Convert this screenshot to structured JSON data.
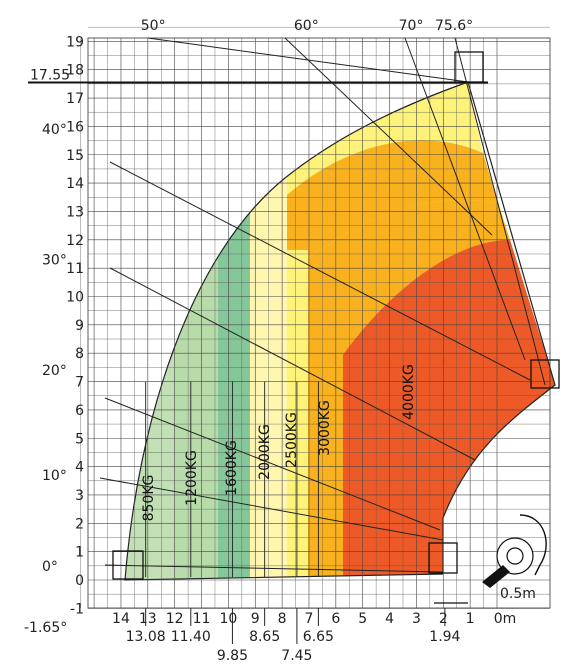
{
  "chart_data": {
    "type": "area",
    "title": "",
    "xlabel": "",
    "ylabel": "",
    "xlim": [
      -0.5,
      15
    ],
    "ylim": [
      -1.65,
      19.6
    ],
    "grid": true,
    "x_ticks": [
      14,
      13,
      12,
      11,
      10,
      9,
      8,
      7,
      6,
      5,
      4,
      3,
      2,
      1
    ],
    "x_zero_label": "0m",
    "y_ticks": [
      -1,
      0,
      1,
      2,
      3,
      4,
      5,
      6,
      7,
      8,
      9,
      10,
      11,
      12,
      13,
      14,
      15,
      16,
      17,
      18,
      19
    ],
    "reference_marks": {
      "max_height": 17.55,
      "max_height_label": "17.55",
      "min_height": -1.65,
      "min_height_label": "-1.65°",
      "x_marks": [
        {
          "value": 13.08,
          "label": "13.08",
          "row": 1
        },
        {
          "value": 11.4,
          "label": "11.40",
          "row": 1
        },
        {
          "value": 9.85,
          "label": "9.85",
          "row": 2
        },
        {
          "value": 8.65,
          "label": "8.65",
          "row": 1
        },
        {
          "value": 7.45,
          "label": "7.45",
          "row": 2
        },
        {
          "value": 6.65,
          "label": "6.65",
          "row": 1
        },
        {
          "value": 1.94,
          "label": "1.94",
          "row": 1
        }
      ],
      "offset_label": "0.5m"
    },
    "angles": [
      {
        "label": "0°",
        "row": "left",
        "y": 0.5
      },
      {
        "label": "10°",
        "row": "left",
        "y": 3.7
      },
      {
        "label": "20°",
        "row": "left",
        "y": 7.4
      },
      {
        "label": "30°",
        "row": "left",
        "y": 11.3
      },
      {
        "label": "40°",
        "row": "left",
        "y": 15.9
      },
      {
        "label": "50°",
        "row": "top",
        "x": 12.8
      },
      {
        "label": "60°",
        "row": "top",
        "x": 7.1
      },
      {
        "label": "70°",
        "row": "top",
        "x": 3.2
      },
      {
        "label": "75.6°",
        "row": "top",
        "x": 1.6
      }
    ],
    "series": [
      {
        "name": "850KG",
        "color": "#c2dfb6",
        "x_from": 13.08,
        "x_to": 11.4
      },
      {
        "name": "1200KG",
        "color": "#b7dcaa",
        "x_from": 11.4,
        "x_to": 9.85
      },
      {
        "name": "1600KG",
        "color": "#86c79a",
        "x_from": 9.85,
        "x_to": 8.65
      },
      {
        "name": "2000KG",
        "color": "#fff6b0",
        "x_from": 8.65,
        "x_to": 7.45
      },
      {
        "name": "2500KG",
        "color": "#fdf37a",
        "x_from": 7.45,
        "x_to": 6.65
      },
      {
        "name": "3000KG",
        "color": "#f9b21e",
        "x_from": 6.65,
        "x_to": 5.5
      },
      {
        "name": "4000KG",
        "color": "#ee5a27",
        "x_from": 5.5,
        "x_to": 1.94
      }
    ]
  }
}
